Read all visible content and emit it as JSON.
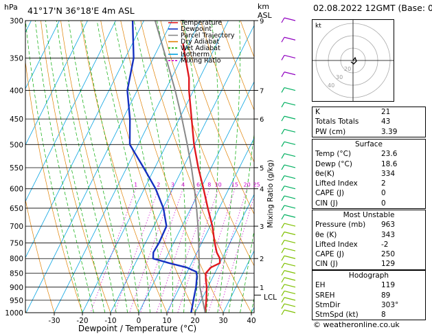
{
  "header": {
    "pressure_unit": "hPa",
    "location": "41°17'N  36°18'E  4m  ASL",
    "alt_unit_km": "km",
    "alt_unit_asl": "ASL",
    "datetime": "02.08.2022  12GMT  (Base: 00)"
  },
  "legend": [
    {
      "label": "Temperature",
      "color": "#e0181e"
    },
    {
      "label": "Dewpoint",
      "color": "#1530c0"
    },
    {
      "label": "Parcel Trajectory",
      "color": "#888888"
    },
    {
      "label": "Dry Adiabat",
      "color": "#e08000"
    },
    {
      "label": "Wet Adiabat",
      "color": "#00aa00"
    },
    {
      "label": "Isotherm",
      "color": "#00a0e0"
    },
    {
      "label": "Mixing Ratio",
      "color": "#cc00cc"
    }
  ],
  "axes": {
    "xlabel": "Dewpoint / Temperature (°C)",
    "mixing_ratio_label": "Mixing Ratio (g/kg)",
    "lcl_label": "LCL"
  },
  "chart_data": {
    "type": "line",
    "pressure_levels": [
      300,
      350,
      400,
      450,
      500,
      550,
      600,
      650,
      700,
      750,
      800,
      850,
      900,
      950,
      1000
    ],
    "altitude_km": [
      {
        "p": 300,
        "km": "9"
      },
      {
        "p": 400,
        "km": "7"
      },
      {
        "p": 450,
        "km": "6"
      },
      {
        "p": 550,
        "km": "5"
      },
      {
        "p": 600,
        "km": "4"
      },
      {
        "p": 700,
        "km": "3"
      },
      {
        "p": 800,
        "km": "2"
      },
      {
        "p": 900,
        "km": "1"
      }
    ],
    "temperature_ticks": [
      -30,
      -20,
      -10,
      0,
      10,
      20,
      30,
      40
    ],
    "xlim": [
      -35,
      40
    ],
    "ylim": [
      1000,
      300
    ],
    "mixing_ratio_values": [
      "1",
      "2",
      "3",
      "4",
      "6",
      "8",
      "10",
      "15",
      "20",
      "25"
    ],
    "series": [
      {
        "name": "Temperature",
        "color": "#e0181e",
        "points": [
          [
            1000,
            23.6
          ],
          [
            950,
            21.8
          ],
          [
            900,
            19.6
          ],
          [
            870,
            17.8
          ],
          [
            850,
            16.8
          ],
          [
            830,
            17.6
          ],
          [
            815,
            20.0
          ],
          [
            800,
            19.2
          ],
          [
            780,
            17.0
          ],
          [
            750,
            14.6
          ],
          [
            700,
            10.8
          ],
          [
            650,
            6.0
          ],
          [
            600,
            1.0
          ],
          [
            550,
            -4.6
          ],
          [
            500,
            -10.2
          ],
          [
            450,
            -15.6
          ],
          [
            400,
            -21.6
          ],
          [
            380,
            -23.8
          ],
          [
            350,
            -28.6
          ],
          [
            330,
            -32.0
          ]
        ]
      },
      {
        "name": "Dewpoint",
        "color": "#1530c0",
        "points": [
          [
            1000,
            18.6
          ],
          [
            950,
            17.2
          ],
          [
            900,
            15.8
          ],
          [
            860,
            14.2
          ],
          [
            845,
            13.2
          ],
          [
            830,
            9.0
          ],
          [
            815,
            2.0
          ],
          [
            800,
            -4.5
          ],
          [
            780,
            -5.5
          ],
          [
            750,
            -5.2
          ],
          [
            700,
            -5.5
          ],
          [
            650,
            -9.8
          ],
          [
            600,
            -16.0
          ],
          [
            550,
            -24.0
          ],
          [
            500,
            -33.0
          ],
          [
            450,
            -37.5
          ],
          [
            400,
            -43.5
          ],
          [
            350,
            -47.0
          ],
          [
            300,
            -54.0
          ]
        ]
      },
      {
        "name": "Parcel Trajectory",
        "color": "#888888",
        "points": [
          [
            1000,
            23.6
          ],
          [
            930,
            19.2
          ],
          [
            900,
            17.2
          ],
          [
            850,
            14.6
          ],
          [
            800,
            11.8
          ],
          [
            750,
            8.9
          ],
          [
            700,
            5.7
          ],
          [
            650,
            2.0
          ],
          [
            600,
            -2.2
          ],
          [
            550,
            -7.0
          ],
          [
            500,
            -12.6
          ],
          [
            450,
            -19.0
          ],
          [
            400,
            -26.5
          ],
          [
            350,
            -35.5
          ],
          [
            300,
            -46.0
          ]
        ]
      }
    ],
    "lcl_pressure": 930,
    "wind_barbs_label": "wind barbs",
    "hodograph": {
      "label": "kt",
      "ring_labels": [
        "40",
        "30",
        "20"
      ]
    },
    "indices": [
      {
        "label": "K",
        "value": "21"
      },
      {
        "label": "Totals Totals",
        "value": "43"
      },
      {
        "label": "PW (cm)",
        "value": "3.39"
      }
    ],
    "surface": {
      "title": "Surface",
      "rows": [
        {
          "label": "Temp (°C)",
          "value": "23.6"
        },
        {
          "label": "Dewp (°C)",
          "value": "18.6"
        },
        {
          "label": "θe(K)",
          "value": "334"
        },
        {
          "label": "Lifted Index",
          "value": "2"
        },
        {
          "label": "CAPE (J)",
          "value": "0"
        },
        {
          "label": "CIN (J)",
          "value": "0"
        }
      ]
    },
    "most_unstable": {
      "title": "Most Unstable",
      "rows": [
        {
          "label": "Pressure (mb)",
          "value": "963"
        },
        {
          "label": "θe (K)",
          "value": "343"
        },
        {
          "label": "Lifted Index",
          "value": "-2"
        },
        {
          "label": "CAPE (J)",
          "value": "250"
        },
        {
          "label": "CIN (J)",
          "value": "129"
        }
      ]
    },
    "hodograph_table": {
      "title": "Hodograph",
      "rows": [
        {
          "label": "EH",
          "value": "119"
        },
        {
          "label": "SREH",
          "value": "89"
        },
        {
          "label": "StmDir",
          "value": "303°"
        },
        {
          "label": "StmSpd (kt)",
          "value": "8"
        }
      ]
    }
  },
  "footer": {
    "copyright": "© weatheronline.co.uk"
  }
}
